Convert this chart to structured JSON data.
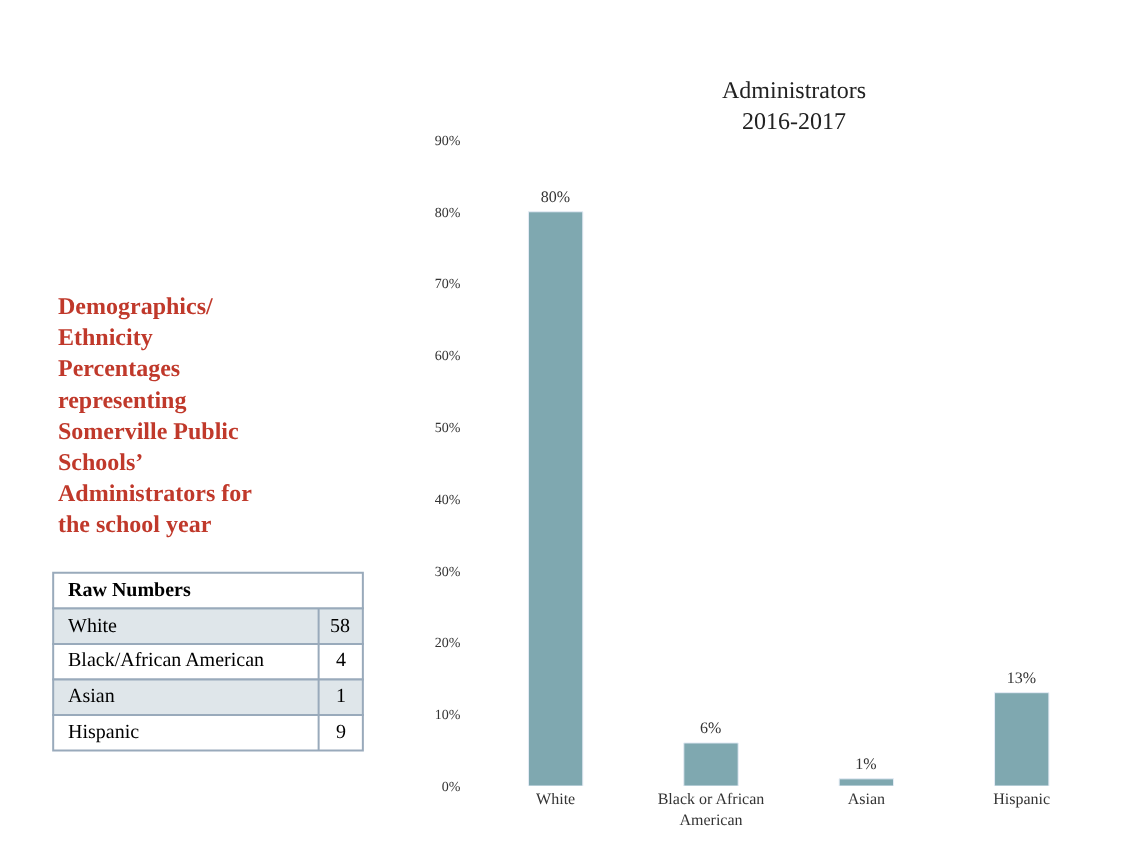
{
  "chart_data": [
    {
      "type": "other",
      "title": "Raw Numbers",
      "annotations": [
        "Demographics/ Ethnicity Percentages representing Somerville Public Schools’ Administrators for the school year"
      ],
      "categories": [
        "White",
        "Black/African American",
        "Asian",
        "Hispanic"
      ],
      "values": [
        58,
        4,
        1,
        9
      ],
      "data_labels": true
    },
    {
      "type": "bar",
      "title": "Administrators\n2016-2017",
      "categories": [
        "White",
        "Black or African American",
        "Asian",
        "Hispanic"
      ],
      "values": [
        80,
        6,
        1,
        13
      ],
      "color": "#7fa8b0",
      "value_labels": [
        "80%",
        "6%",
        "1%",
        "13%"
      ],
      "ylim": [
        0,
        90
      ],
      "yticks": [
        {
          "value": 0,
          "label": "0%"
        },
        {
          "value": 10,
          "label": "10%"
        },
        {
          "value": 20,
          "label": "20%"
        },
        {
          "value": 30,
          "label": "30%"
        },
        {
          "value": 40,
          "label": "40%"
        },
        {
          "value": 50,
          "label": "50%"
        },
        {
          "value": 60,
          "label": "60%"
        },
        {
          "value": 70,
          "label": "70%"
        },
        {
          "value": 80,
          "label": "80%"
        },
        {
          "value": 90,
          "label": "90%"
        }
      ]
    }
  ]
}
